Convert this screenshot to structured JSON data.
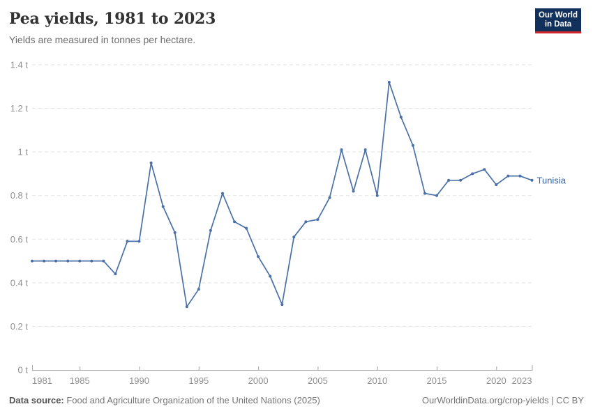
{
  "header": {
    "title": "Pea yields, 1981 to 2023",
    "subtitle": "Yields are measured in tonnes per hectare."
  },
  "logo": {
    "line1": "Our World",
    "line2": "in Data"
  },
  "colors": {
    "series": "#4a70a8",
    "series_label": "#3a66a5",
    "grid": "#e2e2e2",
    "axis": "#a5a5a5",
    "tick_label": "#8f8f8f"
  },
  "chart_data": {
    "type": "line",
    "title": "Pea yields, 1981 to 2023",
    "subtitle": "Yields are measured in tonnes per hectare.",
    "ylabel": "tonnes per hectare",
    "unit": "t",
    "xlim": [
      1981,
      2023
    ],
    "ylim": [
      0,
      1.4
    ],
    "grid": "horizontal-dashed",
    "legend_position": "end-of-line",
    "x_ticks": [
      1981,
      1985,
      1990,
      1995,
      2000,
      2005,
      2010,
      2015,
      2020,
      2023
    ],
    "y_ticks": [
      0,
      0.2,
      0.4,
      0.6,
      0.8,
      1,
      1.2,
      1.4
    ],
    "y_tick_labels": [
      "0 t",
      "0.2 t",
      "0.4 t",
      "0.6 t",
      "0.8 t",
      "1 t",
      "1.2 t",
      "1.4 t"
    ],
    "series": [
      {
        "name": "Tunisia",
        "color": "#4a70a8",
        "x": [
          1981,
          1982,
          1983,
          1984,
          1985,
          1986,
          1987,
          1988,
          1989,
          1990,
          1991,
          1992,
          1993,
          1994,
          1995,
          1996,
          1997,
          1998,
          1999,
          2000,
          2001,
          2002,
          2003,
          2004,
          2005,
          2006,
          2007,
          2008,
          2009,
          2010,
          2011,
          2012,
          2013,
          2014,
          2015,
          2016,
          2017,
          2018,
          2019,
          2020,
          2021,
          2022,
          2023
        ],
        "values": [
          0.5,
          0.5,
          0.5,
          0.5,
          0.5,
          0.5,
          0.5,
          0.44,
          0.59,
          0.59,
          0.95,
          0.75,
          0.63,
          0.29,
          0.37,
          0.64,
          0.81,
          0.68,
          0.65,
          0.52,
          0.43,
          0.3,
          0.61,
          0.68,
          0.69,
          0.79,
          1.01,
          0.82,
          1.01,
          0.8,
          1.32,
          1.16,
          1.03,
          0.81,
          0.8,
          0.87,
          0.87,
          0.9,
          0.92,
          0.85,
          0.89,
          0.89,
          0.87
        ]
      }
    ]
  },
  "footer": {
    "source_label": "Data source:",
    "source_text": " Food and Agriculture Organization of the United Nations (2025)",
    "credit": "OurWorldinData.org/crop-yields | CC BY"
  }
}
